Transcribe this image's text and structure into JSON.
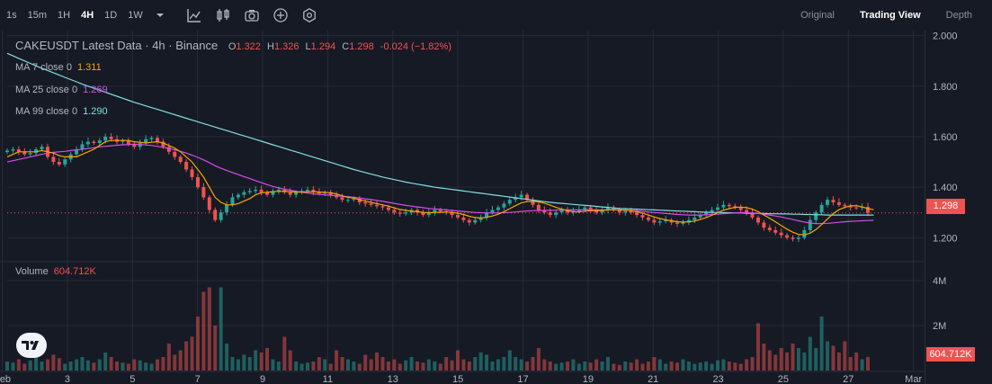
{
  "toolbar": {
    "timeframes": [
      {
        "label": "1s",
        "active": false
      },
      {
        "label": "15m",
        "active": false
      },
      {
        "label": "1H",
        "active": false
      },
      {
        "label": "4H",
        "active": true
      },
      {
        "label": "1D",
        "active": false
      },
      {
        "label": "1W",
        "active": false
      }
    ],
    "tools": [
      "chevron-down-icon",
      "indicators-icon",
      "chart-type-icon",
      "camera-icon",
      "plus-circle-icon",
      "settings-icon"
    ],
    "views": [
      {
        "label": "Original",
        "active": false
      },
      {
        "label": "Trading View",
        "active": true
      },
      {
        "label": "Depth",
        "active": false
      }
    ]
  },
  "legend": {
    "title": "CAKEUSDT Latest Data · 4h · Binance",
    "o_label": "O",
    "o": "1.322",
    "h_label": "H",
    "h": "1.326",
    "l_label": "L",
    "l": "1.294",
    "c_label": "C",
    "c": "1.298",
    "change": "-0.024 (−1.82%)"
  },
  "ma": [
    {
      "label": "MA 7 close 0",
      "value": "1.311",
      "color": "#f7a600"
    },
    {
      "label": "MA 25 close 0",
      "value": "1.269",
      "color": "#d44ee8"
    },
    {
      "label": "MA 99 close 0",
      "value": "1.290",
      "color": "#7fdfe0"
    }
  ],
  "volume_legend": {
    "label": "Volume",
    "value": "604.712K"
  },
  "price_tag": "1.298",
  "volume_tag": "604.712K",
  "colors": {
    "up": "#26a69a",
    "down": "#ef5350",
    "background": "#161a25",
    "grid": "#262b37"
  },
  "chart_data": {
    "type": "candlestick",
    "symbol": "CAKEUSDT",
    "interval": "4h",
    "price_axis": {
      "ticks": [
        "2.000",
        "1.800",
        "1.600",
        "1.400",
        "1.200"
      ],
      "range": [
        1.13,
        2.02
      ]
    },
    "volume_axis": {
      "ticks": [
        "4M",
        "2M"
      ],
      "range": [
        0,
        4.8
      ]
    },
    "x_ticks": [
      "Feb",
      "3",
      "5",
      "7",
      "9",
      "11",
      "13",
      "15",
      "17",
      "19",
      "21",
      "23",
      "25",
      "27",
      "Mar"
    ],
    "x_tick_days": [
      1,
      3,
      5,
      7,
      9,
      11,
      13,
      15,
      17,
      19,
      21,
      23,
      25,
      27,
      29
    ],
    "start_day": 1.15,
    "end_day": 27.6,
    "close": [
      1.545,
      1.55,
      1.54,
      1.53,
      1.535,
      1.55,
      1.56,
      1.52,
      1.5,
      1.49,
      1.51,
      1.53,
      1.55,
      1.57,
      1.58,
      1.575,
      1.585,
      1.6,
      1.59,
      1.58,
      1.585,
      1.57,
      1.56,
      1.575,
      1.59,
      1.595,
      1.58,
      1.56,
      1.54,
      1.52,
      1.5,
      1.47,
      1.44,
      1.4,
      1.36,
      1.31,
      1.27,
      1.3,
      1.33,
      1.36,
      1.37,
      1.38,
      1.385,
      1.39,
      1.38,
      1.37,
      1.385,
      1.39,
      1.38,
      1.37,
      1.38,
      1.385,
      1.39,
      1.38,
      1.375,
      1.38,
      1.37,
      1.36,
      1.35,
      1.35,
      1.355,
      1.34,
      1.335,
      1.33,
      1.325,
      1.32,
      1.31,
      1.3,
      1.295,
      1.3,
      1.31,
      1.3,
      1.29,
      1.3,
      1.31,
      1.305,
      1.3,
      1.29,
      1.28,
      1.27,
      1.26,
      1.27,
      1.28,
      1.3,
      1.31,
      1.32,
      1.335,
      1.35,
      1.36,
      1.37,
      1.35,
      1.33,
      1.31,
      1.3,
      1.29,
      1.3,
      1.31,
      1.3,
      1.305,
      1.31,
      1.32,
      1.31,
      1.3,
      1.31,
      1.32,
      1.31,
      1.3,
      1.305,
      1.3,
      1.29,
      1.28,
      1.27,
      1.26,
      1.265,
      1.27,
      1.26,
      1.255,
      1.26,
      1.27,
      1.28,
      1.29,
      1.3,
      1.31,
      1.32,
      1.33,
      1.325,
      1.32,
      1.31,
      1.3,
      1.28,
      1.26,
      1.24,
      1.23,
      1.22,
      1.21,
      1.2,
      1.195,
      1.2,
      1.23,
      1.27,
      1.3,
      1.33,
      1.35,
      1.34,
      1.33,
      1.325,
      1.32,
      1.318,
      1.322,
      1.298
    ],
    "volume_m": [
      0.4,
      0.35,
      0.5,
      0.3,
      0.45,
      0.6,
      0.4,
      0.5,
      0.7,
      0.55,
      0.3,
      0.4,
      0.5,
      0.6,
      0.45,
      0.35,
      0.5,
      0.8,
      0.6,
      0.4,
      0.35,
      0.3,
      0.5,
      0.45,
      0.35,
      0.3,
      0.5,
      0.6,
      1.2,
      0.7,
      0.9,
      1.3,
      1.5,
      2.4,
      3.5,
      3.7,
      2.0,
      3.7,
      1.2,
      0.6,
      0.5,
      0.7,
      0.6,
      0.9,
      0.8,
      1.0,
      0.5,
      0.4,
      1.5,
      0.9,
      0.4,
      0.3,
      0.35,
      0.4,
      0.6,
      0.5,
      0.3,
      0.9,
      0.6,
      0.5,
      0.4,
      0.3,
      0.7,
      0.5,
      0.8,
      0.6,
      0.4,
      0.5,
      0.3,
      0.45,
      0.6,
      0.4,
      0.35,
      0.5,
      0.4,
      0.3,
      0.6,
      0.45,
      0.9,
      0.5,
      0.4,
      0.6,
      0.8,
      0.7,
      0.4,
      0.5,
      0.6,
      0.9,
      0.6,
      0.5,
      0.4,
      0.6,
      1.0,
      0.5,
      0.4,
      0.3,
      0.35,
      0.4,
      0.5,
      0.3,
      0.4,
      0.35,
      0.5,
      0.4,
      0.6,
      0.3,
      0.25,
      0.4,
      0.35,
      0.5,
      0.3,
      0.4,
      0.6,
      0.5,
      0.3,
      0.4,
      0.35,
      0.5,
      0.4,
      0.3,
      0.35,
      0.4,
      0.3,
      0.45,
      0.5,
      0.4,
      0.35,
      0.3,
      0.5,
      0.6,
      2.1,
      1.2,
      0.9,
      0.7,
      1.0,
      0.8,
      1.2,
      1.0,
      0.8,
      1.5,
      1.0,
      2.4,
      1.3,
      1.1,
      0.8,
      1.3,
      0.6,
      0.8,
      0.5,
      0.605
    ],
    "ma7": [
      1.52,
      1.53,
      1.54,
      1.54,
      1.54,
      1.54,
      1.545,
      1.54,
      1.535,
      1.525,
      1.52,
      1.52,
      1.52,
      1.53,
      1.54,
      1.55,
      1.565,
      1.58,
      1.585,
      1.585,
      1.585,
      1.585,
      1.58,
      1.578,
      1.575,
      1.578,
      1.58,
      1.575,
      1.565,
      1.555,
      1.54,
      1.52,
      1.5,
      1.47,
      1.44,
      1.4,
      1.36,
      1.34,
      1.33,
      1.33,
      1.335,
      1.345,
      1.355,
      1.37,
      1.378,
      1.38,
      1.382,
      1.384,
      1.383,
      1.382,
      1.381,
      1.381,
      1.382,
      1.382,
      1.381,
      1.38,
      1.378,
      1.373,
      1.366,
      1.36,
      1.357,
      1.35,
      1.345,
      1.34,
      1.335,
      1.33,
      1.325,
      1.318,
      1.312,
      1.308,
      1.305,
      1.303,
      1.3,
      1.299,
      1.3,
      1.301,
      1.302,
      1.3,
      1.297,
      1.292,
      1.285,
      1.28,
      1.278,
      1.281,
      1.286,
      1.293,
      1.303,
      1.315,
      1.327,
      1.338,
      1.343,
      1.344,
      1.342,
      1.337,
      1.329,
      1.32,
      1.313,
      1.307,
      1.303,
      1.302,
      1.305,
      1.307,
      1.307,
      1.308,
      1.31,
      1.311,
      1.31,
      1.309,
      1.307,
      1.303,
      1.297,
      1.29,
      1.282,
      1.276,
      1.271,
      1.267,
      1.263,
      1.262,
      1.263,
      1.266,
      1.272,
      1.28,
      1.289,
      1.299,
      1.309,
      1.315,
      1.32,
      1.321,
      1.319,
      1.313,
      1.303,
      1.29,
      1.277,
      1.263,
      1.248,
      1.234,
      1.222,
      1.213,
      1.211,
      1.218,
      1.232,
      1.252,
      1.274,
      1.296,
      1.311,
      1.32,
      1.326,
      1.327,
      1.322,
      1.315,
      1.311
    ],
    "ma25": [
      1.5,
      1.505,
      1.51,
      1.515,
      1.52,
      1.525,
      1.53,
      1.535,
      1.538,
      1.54,
      1.542,
      1.545,
      1.548,
      1.55,
      1.553,
      1.556,
      1.56,
      1.562,
      1.564,
      1.566,
      1.568,
      1.569,
      1.57,
      1.569,
      1.567,
      1.565,
      1.562,
      1.558,
      1.553,
      1.548,
      1.542,
      1.535,
      1.527,
      1.518,
      1.508,
      1.497,
      1.485,
      1.475,
      1.466,
      1.458,
      1.45,
      1.442,
      1.434,
      1.426,
      1.418,
      1.41,
      1.403,
      1.397,
      1.392,
      1.388,
      1.384,
      1.38,
      1.377,
      1.374,
      1.372,
      1.37,
      1.368,
      1.366,
      1.364,
      1.362,
      1.36,
      1.357,
      1.354,
      1.351,
      1.348,
      1.344,
      1.34,
      1.336,
      1.332,
      1.328,
      1.325,
      1.322,
      1.319,
      1.316,
      1.314,
      1.312,
      1.31,
      1.308,
      1.306,
      1.304,
      1.302,
      1.3,
      1.299,
      1.298,
      1.298,
      1.298,
      1.299,
      1.3,
      1.302,
      1.304,
      1.306,
      1.307,
      1.308,
      1.308,
      1.308,
      1.309,
      1.31,
      1.31,
      1.31,
      1.31,
      1.31,
      1.31,
      1.31,
      1.31,
      1.31,
      1.31,
      1.31,
      1.309,
      1.308,
      1.306,
      1.304,
      1.302,
      1.3,
      1.298,
      1.296,
      1.294,
      1.292,
      1.291,
      1.29,
      1.29,
      1.29,
      1.291,
      1.292,
      1.293,
      1.295,
      1.297,
      1.298,
      1.299,
      1.299,
      1.298,
      1.296,
      1.293,
      1.29,
      1.286,
      1.282,
      1.277,
      1.272,
      1.267,
      1.262,
      1.258,
      1.256,
      1.256,
      1.257,
      1.259,
      1.261,
      1.263,
      1.265,
      1.266,
      1.267,
      1.268,
      1.269
    ],
    "ma99": [
      1.93,
      1.92,
      1.91,
      1.9,
      1.89,
      1.88,
      1.871,
      1.862,
      1.853,
      1.844,
      1.835,
      1.826,
      1.817,
      1.808,
      1.8,
      1.792,
      1.784,
      1.776,
      1.768,
      1.76,
      1.752,
      1.744,
      1.736,
      1.729,
      1.722,
      1.715,
      1.708,
      1.701,
      1.694,
      1.687,
      1.68,
      1.673,
      1.666,
      1.659,
      1.652,
      1.645,
      1.638,
      1.631,
      1.624,
      1.617,
      1.61,
      1.603,
      1.596,
      1.589,
      1.582,
      1.575,
      1.568,
      1.561,
      1.554,
      1.547,
      1.54,
      1.533,
      1.526,
      1.519,
      1.512,
      1.505,
      1.498,
      1.491,
      1.484,
      1.477,
      1.47,
      1.464,
      1.458,
      1.452,
      1.446,
      1.44,
      1.435,
      1.43,
      1.425,
      1.42,
      1.416,
      1.412,
      1.408,
      1.404,
      1.4,
      1.397,
      1.394,
      1.391,
      1.388,
      1.385,
      1.382,
      1.379,
      1.376,
      1.373,
      1.37,
      1.367,
      1.364,
      1.361,
      1.358,
      1.355,
      1.352,
      1.349,
      1.346,
      1.343,
      1.34,
      1.338,
      1.336,
      1.334,
      1.332,
      1.33,
      1.328,
      1.326,
      1.324,
      1.322,
      1.32,
      1.318,
      1.316,
      1.315,
      1.314,
      1.313,
      1.312,
      1.311,
      1.31,
      1.309,
      1.308,
      1.307,
      1.306,
      1.305,
      1.304,
      1.303,
      1.302,
      1.301,
      1.3,
      1.3,
      1.299,
      1.299,
      1.298,
      1.298,
      1.297,
      1.297,
      1.296,
      1.296,
      1.295,
      1.295,
      1.294,
      1.294,
      1.293,
      1.293,
      1.292,
      1.292,
      1.291,
      1.291,
      1.29,
      1.29,
      1.29,
      1.29,
      1.29,
      1.29,
      1.29,
      1.29,
      1.29
    ]
  }
}
